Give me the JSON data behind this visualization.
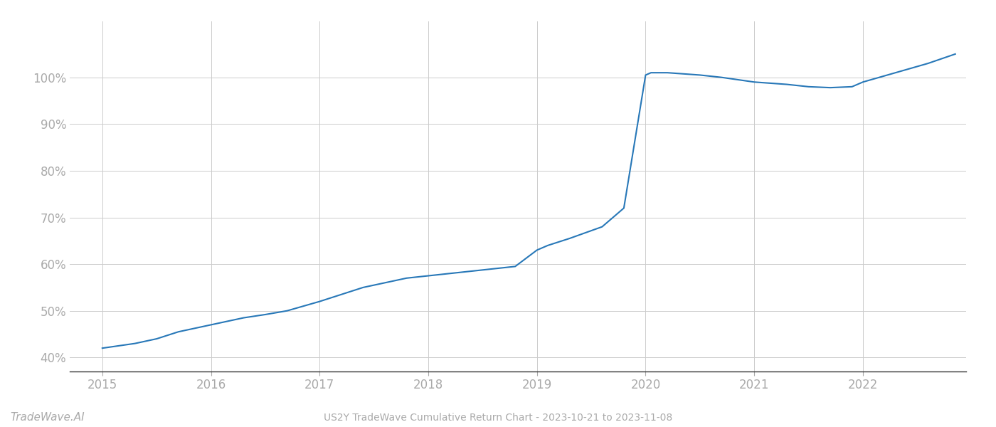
{
  "title": "US2Y TradeWave Cumulative Return Chart - 2023-10-21 to 2023-11-08",
  "watermark": "TradeWave.AI",
  "line_color": "#2878b8",
  "background_color": "#ffffff",
  "grid_color": "#cccccc",
  "x_values": [
    2015.0,
    2015.15,
    2015.3,
    2015.5,
    2015.7,
    2015.9,
    2016.1,
    2016.3,
    2016.5,
    2016.7,
    2016.85,
    2017.0,
    2017.2,
    2017.4,
    2017.5,
    2017.6,
    2017.8,
    2018.0,
    2018.2,
    2018.4,
    2018.6,
    2018.8,
    2019.0,
    2019.05,
    2019.1,
    2019.3,
    2019.6,
    2019.8,
    2020.0,
    2020.05,
    2020.2,
    2020.5,
    2020.7,
    2021.0,
    2021.3,
    2021.5,
    2021.7,
    2021.9,
    2022.0,
    2022.3,
    2022.6,
    2022.85
  ],
  "y_values": [
    42.0,
    42.5,
    43.0,
    44.0,
    45.5,
    46.5,
    47.5,
    48.5,
    49.2,
    50.0,
    51.0,
    52.0,
    53.5,
    55.0,
    55.5,
    56.0,
    57.0,
    57.5,
    58.0,
    58.5,
    59.0,
    59.5,
    63.0,
    63.5,
    64.0,
    65.5,
    68.0,
    72.0,
    100.5,
    101.0,
    101.0,
    100.5,
    100.0,
    99.0,
    98.5,
    98.0,
    97.8,
    98.0,
    99.0,
    101.0,
    103.0,
    105.0
  ],
  "xlim": [
    2014.7,
    2022.95
  ],
  "ylim": [
    37,
    112
  ],
  "yticks": [
    40,
    50,
    60,
    70,
    80,
    90,
    100
  ],
  "xticks": [
    2015,
    2016,
    2017,
    2018,
    2019,
    2020,
    2021,
    2022
  ],
  "line_width": 1.5,
  "title_fontsize": 10,
  "tick_fontsize": 12,
  "watermark_fontsize": 11
}
